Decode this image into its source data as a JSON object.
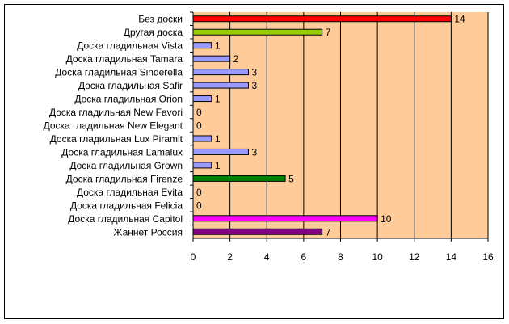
{
  "chart_data": {
    "type": "bar",
    "orientation": "horizontal",
    "title": "",
    "xlabel": "",
    "ylabel": "",
    "xlim": [
      0,
      16
    ],
    "xticks": [
      0,
      2,
      4,
      6,
      8,
      10,
      12,
      14,
      16
    ],
    "grid": "vertical",
    "plot_background": "#FFCC99",
    "categories": [
      "Без доски",
      "Другая доска",
      "Доска гладильная Vista",
      "Доска гладильная Tamara",
      "Доска гладильная Sinderella",
      "Доска гладильная Safir",
      "Доска гладильная Orion",
      "Доска гладильная New Favori",
      "Доска гладильная New Elegant",
      "Доска гладильная Lux Piramit",
      "Доска гладильная Lamalux",
      "Доска гладильная Grown",
      "Доска гладильная Firenze",
      "Доска гладильная Evita",
      "Доска гладильная Felicia",
      "Доска гладильная Capitol",
      "Жаннет Россия"
    ],
    "values": [
      14,
      7,
      1,
      2,
      3,
      3,
      1,
      0,
      0,
      1,
      3,
      1,
      5,
      0,
      0,
      10,
      7
    ],
    "colors": [
      "#FF0000",
      "#99CC00",
      "#9999FF",
      "#9999FF",
      "#9999FF",
      "#9999FF",
      "#9999FF",
      "#9999FF",
      "#9999FF",
      "#9999FF",
      "#9999FF",
      "#9999FF",
      "#008000",
      "#9999FF",
      "#9999FF",
      "#FF00FF",
      "#800080"
    ]
  }
}
